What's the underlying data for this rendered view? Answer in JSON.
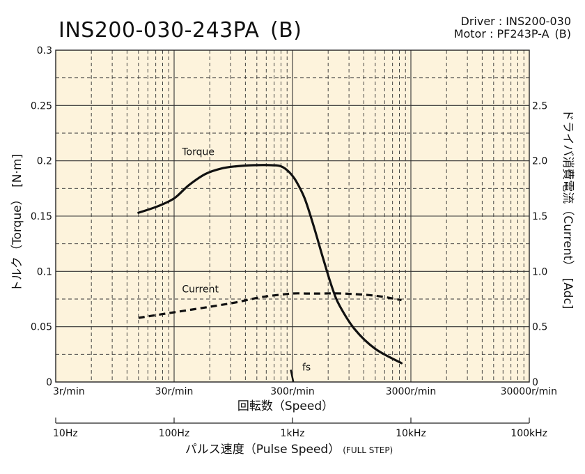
{
  "header": {
    "title": "INS200-030-243PA (B)",
    "driver_line": "Driver : INS200-030",
    "motor_line": "Motor : PF243P-A (B)"
  },
  "chart_data": {
    "type": "line",
    "x_scale": "log",
    "colors": {
      "plot_bg": "#fdf3dc",
      "line": "#111111",
      "grid": "#333333"
    },
    "grid": true,
    "x_speed_ticks": [
      "3r/min",
      "30r/min",
      "300r/min",
      "3000r/min",
      "30000r/min"
    ],
    "x_speed_tick_values": [
      3,
      30,
      300,
      3000,
      30000
    ],
    "x_speed_label": "回転数（Speed）",
    "x_pulse_ticks": [
      "10Hz",
      "100Hz",
      "1kHz",
      "10kHz",
      "100kHz"
    ],
    "x_pulse_label": "パルス速度（Pulse Speed）",
    "x_pulse_note": "(FULL STEP)",
    "y_left_label": "トルク（Torque）　[N·m]",
    "y_left_ticks": [
      "0",
      "0.05",
      "0.1",
      "0.15",
      "0.2",
      "0.25",
      "0.3"
    ],
    "y_left_lim": [
      0,
      0.3
    ],
    "y_right_label": "ドライバ消費電流（Current）　[Adc]",
    "y_right_ticks": [
      "0",
      "0.5",
      "1.0",
      "1.5",
      "2.0",
      "2.5"
    ],
    "y_right_lim": [
      0,
      3.0
    ],
    "series": [
      {
        "name": "Torque",
        "axis": "left",
        "style": "solid",
        "x": [
          15,
          22,
          30,
          40,
          55,
          75,
          100,
          140,
          200,
          240,
          280,
          320,
          380,
          450,
          550,
          650,
          750,
          1000,
          1500,
          2500
        ],
        "y": [
          0.153,
          0.159,
          0.166,
          0.178,
          0.188,
          0.193,
          0.195,
          0.196,
          0.196,
          0.195,
          0.19,
          0.182,
          0.166,
          0.142,
          0.11,
          0.085,
          0.069,
          0.048,
          0.03,
          0.017
        ]
      },
      {
        "name": "Current",
        "axis": "right",
        "style": "dashed",
        "x": [
          15,
          30,
          60,
          100,
          150,
          200,
          300,
          400,
          500,
          800,
          1500,
          2500
        ],
        "y": [
          0.58,
          0.63,
          0.68,
          0.72,
          0.76,
          0.78,
          0.8,
          0.8,
          0.8,
          0.8,
          0.78,
          0.74
        ]
      }
    ],
    "annotations": [
      {
        "text": "Torque",
        "x": 35,
        "y": 0.205
      },
      {
        "text": "Current",
        "x": 35,
        "y": 0.081
      },
      {
        "text": "fs",
        "x": 300,
        "y": 0.009
      }
    ],
    "fs_marker": {
      "x": [
        290,
        305
      ],
      "y": [
        0.011,
        0.0
      ]
    }
  }
}
